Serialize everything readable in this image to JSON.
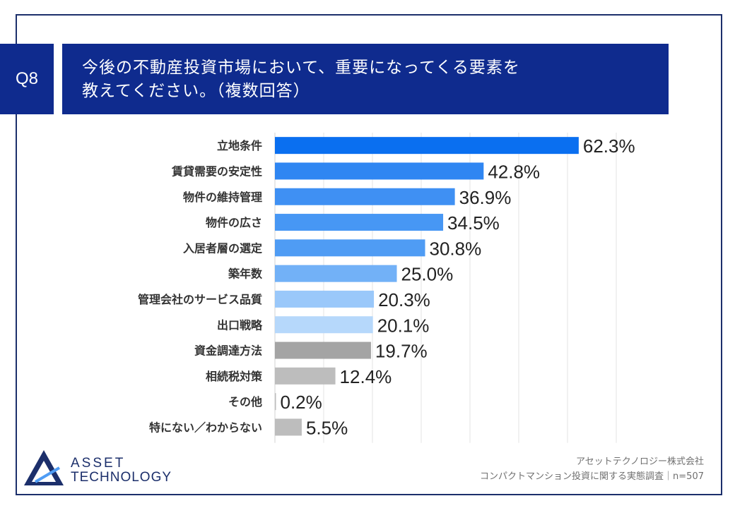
{
  "question": {
    "label": "Q8",
    "title_line1": "今後の不動産投資市場において、重要になってくる要素を",
    "title_line2": "教えてください。（複数回答）"
  },
  "chart_data": {
    "type": "bar",
    "orientation": "horizontal",
    "title": "",
    "xlabel": "",
    "ylabel": "",
    "xlim": [
      0,
      70
    ],
    "grid": true,
    "legend": "none",
    "categories": [
      "立地条件",
      "賃貸需要の安定性",
      "物件の維持管理",
      "物件の広さ",
      "入居者層の選定",
      "築年数",
      "管理会社のサービス品質",
      "出口戦略",
      "資金調達方法",
      "相続税対策",
      "その他",
      "特にない／わからない"
    ],
    "values": [
      62.3,
      42.8,
      36.9,
      34.5,
      30.8,
      25.0,
      20.3,
      20.1,
      19.7,
      12.4,
      0.2,
      5.5
    ],
    "value_labels": [
      "62.3%",
      "42.8%",
      "36.9%",
      "34.5%",
      "30.8%",
      "25.0%",
      "20.3%",
      "20.1%",
      "19.7%",
      "12.4%",
      "0.2%",
      "5.5%"
    ],
    "colors": [
      "#0a6ff0",
      "#2f86f2",
      "#3f90f3",
      "#4797f4",
      "#4f9cf4",
      "#72b1f7",
      "#9ac8fa",
      "#b6d8fb",
      "#a4a4a4",
      "#bdbdbd",
      "#bdbdbd",
      "#bdbdbd"
    ]
  },
  "logo": {
    "line1": "ASSET",
    "line2": "TECHNOLOGY",
    "color": "#1c2f6b"
  },
  "footer": {
    "company": "アセットテクノロジー株式会社",
    "survey": "コンパクトマンション投資に関する実態調査｜n=507"
  }
}
